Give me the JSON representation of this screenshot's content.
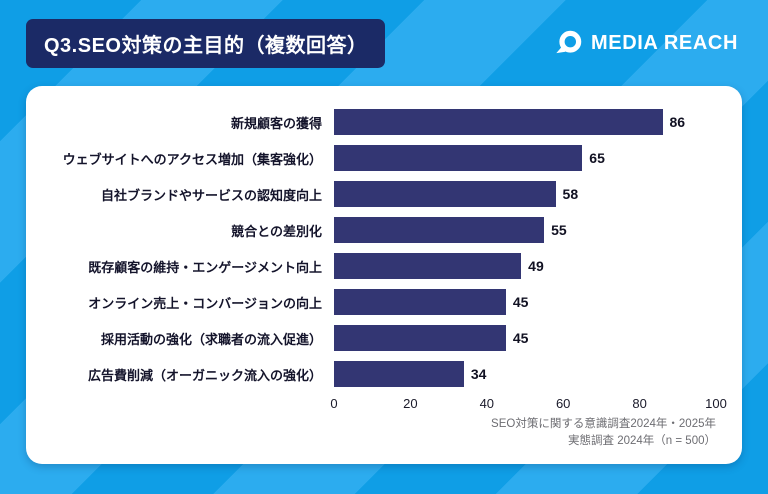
{
  "header": {
    "title": "Q3.SEO対策の主目的（複数回答）",
    "brand": "MEDIA REACH"
  },
  "colors": {
    "background_base": "#0f9ee6",
    "background_stripe": "#2cacef",
    "title_bg": "#1b2a66",
    "bar": "#333673",
    "card_bg": "#ffffff"
  },
  "chart_data": {
    "type": "bar",
    "orientation": "horizontal",
    "title": "Q3.SEO対策の主目的（複数回答）",
    "categories": [
      "新規顧客の獲得",
      "ウェブサイトへのアクセス増加（集客強化）",
      "自社ブランドやサービスの認知度向上",
      "競合との差別化",
      "既存顧客の維持・エンゲージメント向上",
      "オンライン売上・コンバージョンの向上",
      "採用活動の強化（求職者の流入促進）",
      "広告費削減（オーガニック流入の強化）"
    ],
    "values": [
      86,
      65,
      58,
      55,
      49,
      45,
      45,
      34
    ],
    "xlim": [
      0,
      100
    ],
    "xticks": [
      0,
      20,
      40,
      60,
      80,
      100
    ],
    "grid": false,
    "value_labels": true,
    "legend": "none"
  },
  "footnote": {
    "line1": "SEO対策に関する意識調査2024年・2025年",
    "line2": "実態調査 2024年（n = 500）"
  }
}
